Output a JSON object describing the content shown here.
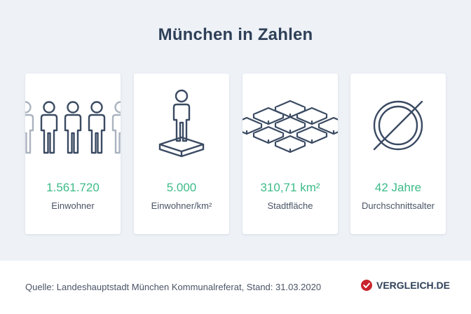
{
  "title": "München in Zahlen",
  "cards": [
    {
      "icon": "population-icon",
      "value": "1.561.720",
      "label": "Einwohner"
    },
    {
      "icon": "density-icon",
      "value": "5.000",
      "label": "Einwohner/km²"
    },
    {
      "icon": "area-icon",
      "value": "310,71 km²",
      "label": "Stadtfläche"
    },
    {
      "icon": "average-icon",
      "value": "42 Jahre",
      "label": "Durchschnittsalter"
    }
  ],
  "footer": {
    "source": "Quelle: Landeshauptstadt München Kommunalreferat, Stand: 31.03.2020",
    "brand": "VERGLEICH.DE",
    "brand_icon": "checkmark-badge-icon"
  },
  "colors": {
    "background": "#eef2f7",
    "title": "#2f4058",
    "accent": "#3dbb87",
    "icon_stroke": "#3a4a62",
    "icon_stroke_faded": "#aab3c0",
    "brand_red": "#c8232c"
  }
}
